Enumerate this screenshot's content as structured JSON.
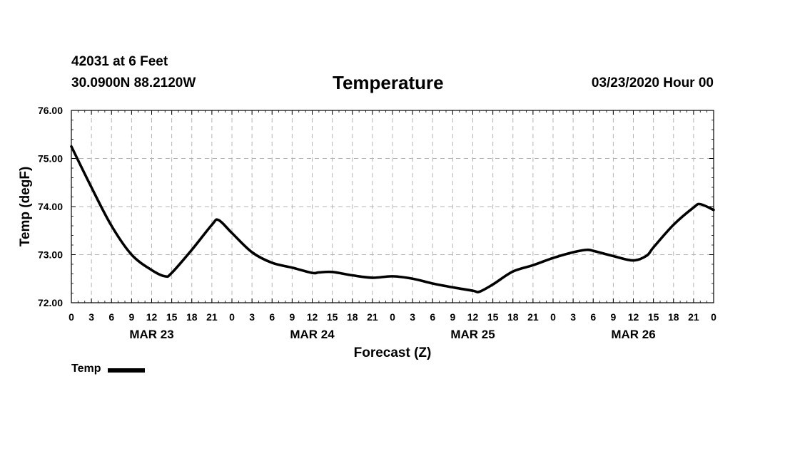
{
  "header": {
    "station": "42031 at 6 Feet",
    "location": "30.0900N 88.2120W",
    "datetime": "03/23/2020 Hour 00"
  },
  "chart_data": {
    "type": "line",
    "title": "Temperature",
    "xlabel": "Forecast (Z)",
    "ylabel": "Temp (degF)",
    "xlim": [
      0,
      96
    ],
    "ylim": [
      72.0,
      76.0
    ],
    "yticks": [
      "72.00",
      "73.00",
      "74.00",
      "75.00",
      "76.00"
    ],
    "x_tick_hours": [
      0,
      3,
      6,
      9,
      12,
      15,
      18,
      21,
      24,
      27,
      30,
      33,
      36,
      39,
      42,
      45,
      48,
      51,
      54,
      57,
      60,
      63,
      66,
      69,
      72,
      75,
      78,
      81,
      84,
      87,
      90,
      93,
      96
    ],
    "x_tick_labels": [
      "0",
      "3",
      "6",
      "9",
      "12",
      "15",
      "18",
      "21",
      "0",
      "3",
      "6",
      "9",
      "12",
      "15",
      "18",
      "21",
      "0",
      "3",
      "6",
      "9",
      "12",
      "15",
      "18",
      "21",
      "0",
      "3",
      "6",
      "9",
      "12",
      "15",
      "18",
      "21",
      "0"
    ],
    "date_labels": [
      {
        "hour": 12,
        "text": "MAR 23"
      },
      {
        "hour": 36,
        "text": "MAR 24"
      },
      {
        "hour": 60,
        "text": "MAR 25"
      },
      {
        "hour": 84,
        "text": "MAR 26"
      }
    ],
    "grid": true,
    "legend_position": "bottom-left",
    "series": [
      {
        "name": "Temp",
        "color": "#000000",
        "x": [
          0,
          3,
          6,
          9,
          12,
          14,
          15,
          18,
          21,
          22,
          24,
          27,
          30,
          33,
          36,
          37,
          39,
          42,
          45,
          48,
          51,
          54,
          57,
          60,
          61,
          63,
          66,
          69,
          72,
          75,
          77,
          78,
          81,
          84,
          86,
          87,
          90,
          93,
          94,
          96
        ],
        "y": [
          75.25,
          74.4,
          73.6,
          73.0,
          72.68,
          72.55,
          72.62,
          73.1,
          73.62,
          73.72,
          73.45,
          73.05,
          72.83,
          72.73,
          72.62,
          72.63,
          72.64,
          72.57,
          72.52,
          72.55,
          72.5,
          72.4,
          72.32,
          72.25,
          72.23,
          72.38,
          72.65,
          72.78,
          72.93,
          73.05,
          73.1,
          73.08,
          72.97,
          72.88,
          72.98,
          73.15,
          73.62,
          73.98,
          74.05,
          73.93
        ]
      }
    ]
  },
  "legend": {
    "label": "Temp"
  }
}
